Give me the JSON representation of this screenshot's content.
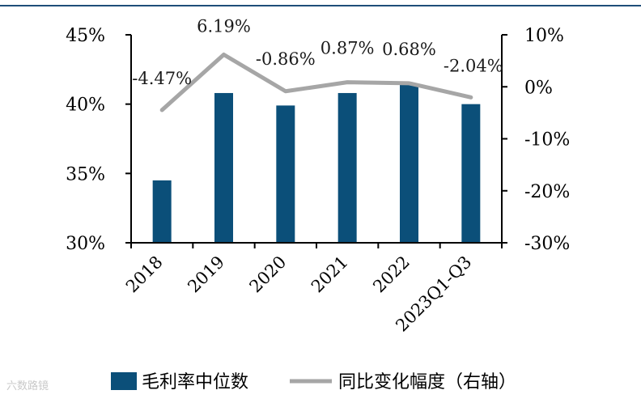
{
  "chart_data": {
    "type": "bar",
    "categories": [
      "2018",
      "2019",
      "2020",
      "2021",
      "2022",
      "2023Q1-Q3"
    ],
    "series": [
      {
        "name": "毛利率中位数",
        "type": "bar",
        "axis": "left",
        "color": "#0b4f79",
        "values": [
          34.5,
          40.8,
          39.9,
          40.8,
          41.4,
          40.0
        ]
      },
      {
        "name": "同比变化幅度（右轴）",
        "type": "line",
        "axis": "right",
        "color": "#a6a6a6",
        "values": [
          -4.47,
          6.19,
          -0.86,
          0.87,
          0.68,
          -2.04
        ],
        "data_labels": [
          "-4.47%",
          "6.19%",
          "-0.86%",
          "0.87%",
          "0.68%",
          "-2.04%"
        ]
      }
    ],
    "left_axis": {
      "ylim": [
        30,
        45
      ],
      "ticks": [
        "30%",
        "35%",
        "40%",
        "45%"
      ],
      "tick_values": [
        30,
        35,
        40,
        45
      ]
    },
    "right_axis": {
      "ylim": [
        -30,
        10
      ],
      "ticks": [
        "-30%",
        "-20%",
        "-10%",
        "0%",
        "10%"
      ],
      "tick_values": [
        -30,
        -20,
        -10,
        0,
        10
      ]
    },
    "legend_position": "bottom",
    "grid": false
  },
  "watermark": "六数路镜"
}
